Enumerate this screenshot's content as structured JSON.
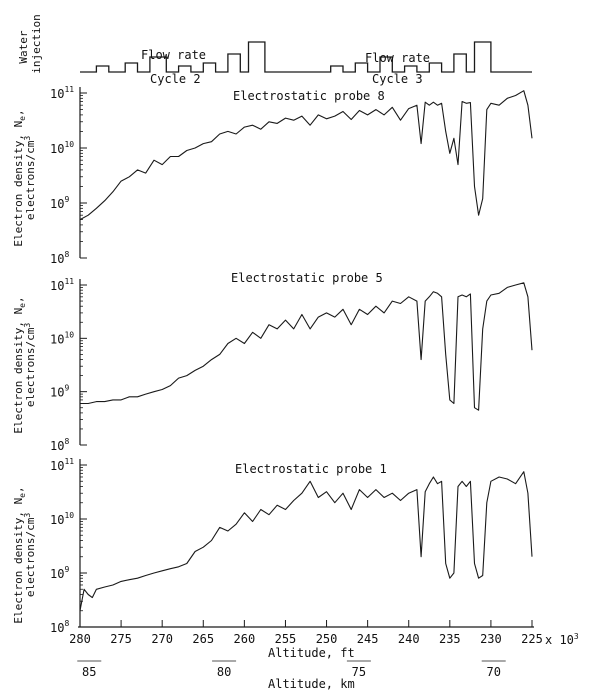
{
  "water_injection": {
    "ylabel_line1": "Water",
    "ylabel_line2": "injection",
    "flow_rate_label_1": "Flow rate",
    "flow_rate_label_2": "Flow rate",
    "cycle_label_1": "Cycle 2",
    "cycle_label_2": "Cycle 3"
  },
  "axes": {
    "xlabel_ft": "Altitude, ft",
    "xlabel_km": "Altitude, km",
    "x_multiplier": "x 10",
    "x_multiplier_exp": "3",
    "ft_ticks": [
      280,
      275,
      270,
      265,
      260,
      255,
      250,
      245,
      240,
      235,
      230,
      225
    ],
    "km_ticks": [
      85,
      80,
      75,
      70
    ],
    "y_tick_base": "10",
    "y_tick_exponents": [
      "8",
      "9",
      "10",
      "11"
    ],
    "ylabel_line1": "Electron density, N",
    "ylabel_sub": "e",
    "ylabel_line2": "electrons/cm",
    "ylabel_line2_exp": "3"
  },
  "colors": {
    "line": "#1a1a1a",
    "background": "#ffffff"
  },
  "chart_data": [
    {
      "type": "line",
      "title": "Electrostatic probe 8",
      "x_units": "altitude (10^3 ft)",
      "xlim": [
        280,
        225
      ],
      "y_scale": "log",
      "ylim": [
        100000000.0,
        100000000000.0
      ],
      "x": [
        280,
        279,
        278,
        277,
        276,
        275,
        274,
        273,
        272,
        271,
        270,
        269,
        268,
        267,
        266,
        265,
        264,
        263,
        262,
        261,
        260,
        259,
        258,
        257,
        256,
        255,
        254,
        253,
        252,
        251,
        250,
        249,
        248,
        247,
        246,
        245,
        244,
        243,
        242,
        241,
        240,
        239,
        238.5,
        238,
        237.5,
        237,
        236.5,
        236,
        235.5,
        235,
        234.5,
        234,
        233.5,
        233,
        232.5,
        232,
        231.5,
        231,
        230.5,
        230,
        229,
        228,
        227,
        226,
        225.5,
        225
      ],
      "y": [
        500000000.0,
        600000000.0,
        800000000.0,
        1100000000.0,
        1600000000.0,
        2500000000.0,
        3000000000.0,
        4000000000.0,
        3500000000.0,
        6000000000.0,
        5000000000.0,
        7000000000.0,
        7000000000.0,
        9000000000.0,
        10000000000.0,
        12000000000.0,
        13000000000.0,
        18000000000.0,
        20000000000.0,
        18000000000.0,
        24000000000.0,
        26000000000.0,
        22000000000.0,
        30000000000.0,
        28000000000.0,
        35000000000.0,
        32000000000.0,
        38000000000.0,
        26000000000.0,
        40000000000.0,
        34000000000.0,
        38000000000.0,
        46000000000.0,
        33000000000.0,
        48000000000.0,
        40000000000.0,
        50000000000.0,
        40000000000.0,
        55000000000.0,
        32000000000.0,
        52000000000.0,
        60000000000.0,
        12000000000.0,
        68000000000.0,
        60000000000.0,
        68000000000.0,
        60000000000.0,
        65000000000.0,
        20000000000.0,
        8000000000.0,
        15000000000.0,
        5000000000.0,
        70000000000.0,
        65000000000.0,
        67000000000.0,
        2000000000.0,
        600000000.0,
        1200000000.0,
        50000000000.0,
        65000000000.0,
        60000000000.0,
        80000000000.0,
        90000000000.0,
        110000000000.0,
        60000000000.0,
        15000000000.0
      ]
    },
    {
      "type": "line",
      "title": "Electrostatic probe 5",
      "x_units": "altitude (10^3 ft)",
      "xlim": [
        280,
        225
      ],
      "y_scale": "log",
      "ylim": [
        100000000.0,
        100000000000.0
      ],
      "x": [
        280,
        279,
        278,
        277,
        276,
        275,
        274,
        273,
        272,
        271,
        270,
        269,
        268,
        267,
        266,
        265,
        264,
        263,
        262,
        261,
        260,
        259,
        258,
        257,
        256,
        255,
        254,
        253,
        252,
        251,
        250,
        249,
        248,
        247,
        246,
        245,
        244,
        243,
        242,
        241,
        240,
        239,
        238.5,
        238,
        237.5,
        237,
        236.5,
        236,
        235.5,
        235,
        234.5,
        234,
        233.5,
        233,
        232.5,
        232,
        231.5,
        231,
        230.5,
        230,
        229,
        228,
        227,
        226,
        225.5,
        225
      ],
      "y": [
        600000000.0,
        600000000.0,
        650000000.0,
        650000000.0,
        700000000.0,
        700000000.0,
        800000000.0,
        800000000.0,
        900000000.0,
        1000000000.0,
        1100000000.0,
        1300000000.0,
        1800000000.0,
        2000000000.0,
        2500000000.0,
        3000000000.0,
        4000000000.0,
        5000000000.0,
        8000000000.0,
        10000000000.0,
        8000000000.0,
        13000000000.0,
        10000000000.0,
        18000000000.0,
        15000000000.0,
        22000000000.0,
        15000000000.0,
        28000000000.0,
        15000000000.0,
        25000000000.0,
        30000000000.0,
        25000000000.0,
        35000000000.0,
        18000000000.0,
        35000000000.0,
        28000000000.0,
        40000000000.0,
        30000000000.0,
        50000000000.0,
        45000000000.0,
        60000000000.0,
        50000000000.0,
        4000000000.0,
        50000000000.0,
        60000000000.0,
        75000000000.0,
        70000000000.0,
        60000000000.0,
        5000000000.0,
        700000000.0,
        600000000.0,
        60000000000.0,
        65000000000.0,
        60000000000.0,
        68000000000.0,
        500000000.0,
        450000000.0,
        15000000000.0,
        50000000000.0,
        65000000000.0,
        70000000000.0,
        90000000000.0,
        100000000000.0,
        110000000000.0,
        60000000000.0,
        6000000000.0
      ]
    },
    {
      "type": "line",
      "title": "Electrostatic probe 1",
      "x_units": "altitude (10^3 ft)",
      "xlim": [
        280,
        225
      ],
      "y_scale": "log",
      "ylim": [
        100000000.0,
        100000000000.0
      ],
      "x": [
        280,
        279.5,
        279,
        278.5,
        278,
        277,
        276,
        275,
        274,
        273,
        272,
        271,
        270,
        269,
        268,
        267,
        266,
        265,
        264,
        263,
        262,
        261,
        260,
        259,
        258,
        257,
        256,
        255,
        254,
        253,
        252,
        251,
        250,
        249,
        248,
        247,
        246,
        245,
        244,
        243,
        242,
        241,
        240,
        239,
        238.5,
        238,
        237.5,
        237,
        236.5,
        236,
        235.5,
        235,
        234.5,
        234,
        233.5,
        233,
        232.5,
        232,
        231.5,
        231,
        230.5,
        230,
        229,
        228,
        227,
        226,
        225.5,
        225
      ],
      "y": [
        200000000.0,
        500000000.0,
        400000000.0,
        350000000.0,
        500000000.0,
        550000000.0,
        600000000.0,
        700000000.0,
        750000000.0,
        800000000.0,
        900000000.0,
        1000000000.0,
        1100000000.0,
        1200000000.0,
        1300000000.0,
        1500000000.0,
        2500000000.0,
        3000000000.0,
        4000000000.0,
        7000000000.0,
        6000000000.0,
        8000000000.0,
        13000000000.0,
        9000000000.0,
        15000000000.0,
        12000000000.0,
        18000000000.0,
        15000000000.0,
        22000000000.0,
        30000000000.0,
        50000000000.0,
        25000000000.0,
        32000000000.0,
        20000000000.0,
        30000000000.0,
        15000000000.0,
        35000000000.0,
        25000000000.0,
        35000000000.0,
        25000000000.0,
        30000000000.0,
        22000000000.0,
        30000000000.0,
        35000000000.0,
        2000000000.0,
        32000000000.0,
        45000000000.0,
        60000000000.0,
        45000000000.0,
        50000000000.0,
        1500000000.0,
        800000000.0,
        1000000000.0,
        40000000000.0,
        50000000000.0,
        40000000000.0,
        50000000000.0,
        1500000000.0,
        800000000.0,
        900000000.0,
        20000000000.0,
        50000000000.0,
        60000000000.0,
        55000000000.0,
        45000000000.0,
        75000000000.0,
        30000000000.0,
        2000000000.0
      ]
    },
    {
      "type": "line",
      "title": "",
      "ylabel": "Water injection",
      "annotations": [
        "Flow rate",
        "Cycle 2",
        "Flow rate",
        "Cycle 3"
      ],
      "x_units": "altitude (10^3 ft)",
      "xlim": [
        280,
        225
      ],
      "step_levels": [
        "low",
        "medium",
        "high"
      ],
      "pulses": [
        {
          "start": 278,
          "end": 276.5,
          "level": 0.2
        },
        {
          "start": 274.5,
          "end": 273,
          "level": 0.3
        },
        {
          "start": 271.5,
          "end": 269.5,
          "level": 0.5
        },
        {
          "start": 268,
          "end": 266.5,
          "level": 0.2
        },
        {
          "start": 265,
          "end": 263.5,
          "level": 0.3
        },
        {
          "start": 262,
          "end": 260.5,
          "level": 0.6
        },
        {
          "start": 259.5,
          "end": 257.5,
          "level": 1.0
        },
        {
          "start": 249.5,
          "end": 248,
          "level": 0.2
        },
        {
          "start": 246.5,
          "end": 245,
          "level": 0.3
        },
        {
          "start": 243.5,
          "end": 242,
          "level": 0.5
        },
        {
          "start": 240.5,
          "end": 239,
          "level": 0.2
        },
        {
          "start": 237.5,
          "end": 236,
          "level": 0.3
        },
        {
          "start": 234.5,
          "end": 233,
          "level": 0.6
        },
        {
          "start": 232,
          "end": 230,
          "level": 1.0
        }
      ]
    }
  ]
}
